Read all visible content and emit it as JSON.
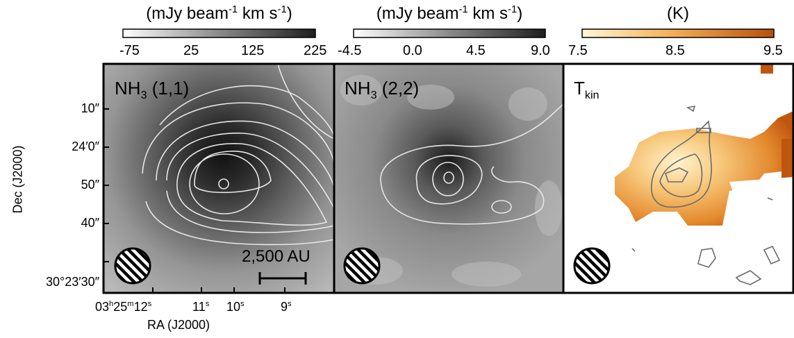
{
  "colorbars": [
    {
      "title_prefix": "(mJy beam",
      "title_exp1": "-1",
      "title_mid": " km s",
      "title_exp2": "-1",
      "title_suffix": ")",
      "ticks": [
        "-75",
        "25",
        "125",
        "225"
      ],
      "colors": [
        "#ffffff",
        "#1e1e1e"
      ]
    },
    {
      "title_prefix": "(mJy beam",
      "title_exp1": "-1",
      "title_mid": " km s",
      "title_exp2": "-1",
      "title_suffix": ")",
      "ticks": [
        "-4.5",
        "0.0",
        "4.5",
        "9.0"
      ],
      "colors": [
        "#ffffff",
        "#1e1e1e"
      ]
    },
    {
      "title_prefix": "(K)",
      "title_exp1": "",
      "title_mid": "",
      "title_exp2": "",
      "title_suffix": "",
      "ticks": [
        "7.5",
        "8.5",
        "9.5"
      ],
      "colors": [
        "#fff7d6",
        "#f5b25a",
        "#c0560e"
      ]
    }
  ],
  "panels": [
    {
      "label_main": "NH",
      "label_sub": "3",
      "label_rest": " (1,1)"
    },
    {
      "label_main": "NH",
      "label_sub": "3",
      "label_rest": " (2,2)"
    },
    {
      "label_main": "T",
      "label_sub": "kin",
      "label_rest": ""
    }
  ],
  "scale_bar": {
    "label": "2,500 AU"
  },
  "dec_axis": {
    "title": "Dec (J2000)",
    "ticks": [
      "10″",
      "24′0″",
      "50″",
      "40″",
      "30°23′30″"
    ]
  },
  "ra_axis": {
    "title": "RA (J2000)",
    "ticks": [
      {
        "main": "03",
        "sup1": "h",
        "mid": "25",
        "sup2": "m",
        "tail": "12",
        "sup3": "s"
      },
      {
        "main": "",
        "sup1": "",
        "mid": "",
        "sup2": "",
        "tail": "11",
        "sup3": "s"
      },
      {
        "main": "",
        "sup1": "",
        "mid": "",
        "sup2": "",
        "tail": "10",
        "sup3": "s"
      },
      {
        "main": "",
        "sup1": "",
        "mid": "",
        "sup2": "",
        "tail": "9",
        "sup3": "s"
      }
    ]
  },
  "colors": {
    "contour_light": "#e6e6e6",
    "contour_dark": "#6a6a6a",
    "frame": "#000000"
  }
}
